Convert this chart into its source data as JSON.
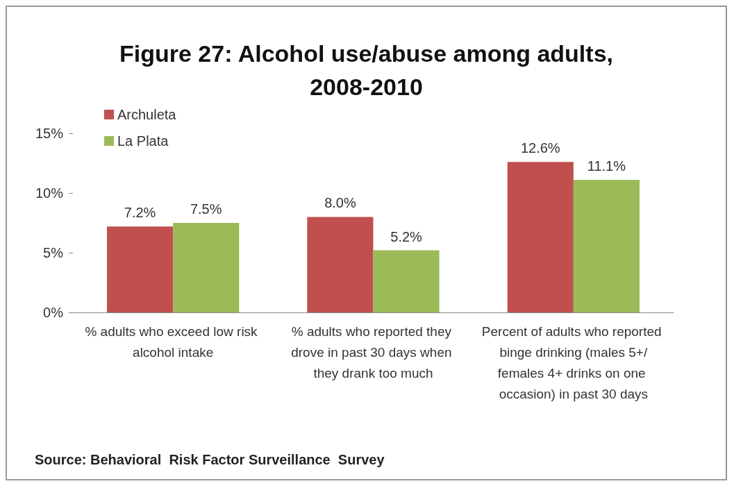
{
  "chart_data": {
    "type": "bar",
    "title": "Figure 27: Alcohol use/abuse among adults,\n2008-2010",
    "categories": [
      "% adults who exceed low risk alcohol intake",
      "% adults who reported they drove in past 30 days when they drank too much",
      "Percent of adults who reported binge drinking (males 5+/females 4+ drinks on one occasion) in past 30 days"
    ],
    "series": [
      {
        "name": "Archuleta",
        "color": "#c0504d",
        "values": [
          7.2,
          8.0,
          12.6
        ],
        "value_labels": [
          "7.2%",
          "8.0%",
          "12.6%"
        ]
      },
      {
        "name": "La Plata",
        "color": "#9bbb59",
        "values": [
          7.5,
          5.2,
          11.1
        ],
        "value_labels": [
          "7.5%",
          "5.2%",
          "11.1%"
        ]
      }
    ],
    "ylim": [
      0,
      15
    ],
    "yticks": [
      {
        "value": 0,
        "label": "0%"
      },
      {
        "value": 5,
        "label": "5%"
      },
      {
        "value": 10,
        "label": "10%"
      },
      {
        "value": 15,
        "label": "15%"
      }
    ],
    "grid": false,
    "legend": "top left",
    "annotations": [
      "Source: Behavioral  Risk Factor Surveillance  Survey"
    ]
  }
}
